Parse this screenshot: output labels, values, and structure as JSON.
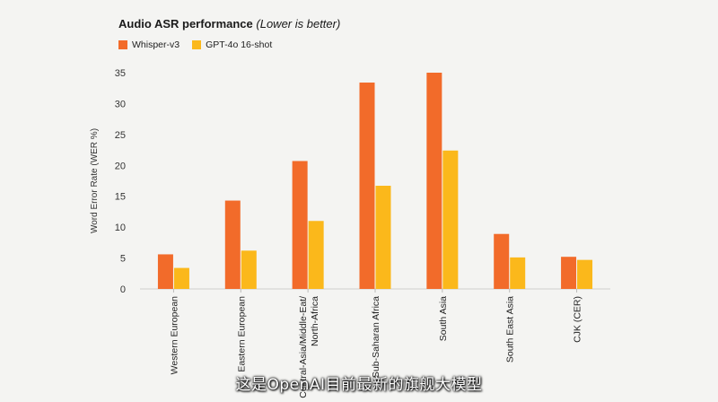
{
  "caption": "这是OpenAI目前最新的旗舰大模型",
  "chart_data": {
    "type": "bar",
    "title": "Audio ASR performance",
    "title_note": "(Lower is better)",
    "ylabel": "Word Error Rate (WER %)",
    "xlabel": "",
    "ylim": [
      0,
      35
    ],
    "yticks": [
      0,
      5,
      10,
      15,
      20,
      25,
      30,
      35
    ],
    "grid": false,
    "legend_position": "top-left",
    "categories": [
      "Western European",
      "Eastern European",
      "Central-Asia/Middle-Eat/\nNorth-Africa",
      "Sub-Saharan Africa",
      "South Asia",
      "South East Asia",
      "CJK (CER)"
    ],
    "series": [
      {
        "name": "Whisper-v3",
        "color": "#f26b2a",
        "values": [
          5.6,
          14.3,
          20.7,
          33.4,
          35.0,
          8.9,
          5.2
        ]
      },
      {
        "name": "GPT-4o 16-shot",
        "color": "#fbb81b",
        "values": [
          3.4,
          6.2,
          11.0,
          16.7,
          22.4,
          5.1,
          4.7
        ]
      }
    ]
  }
}
